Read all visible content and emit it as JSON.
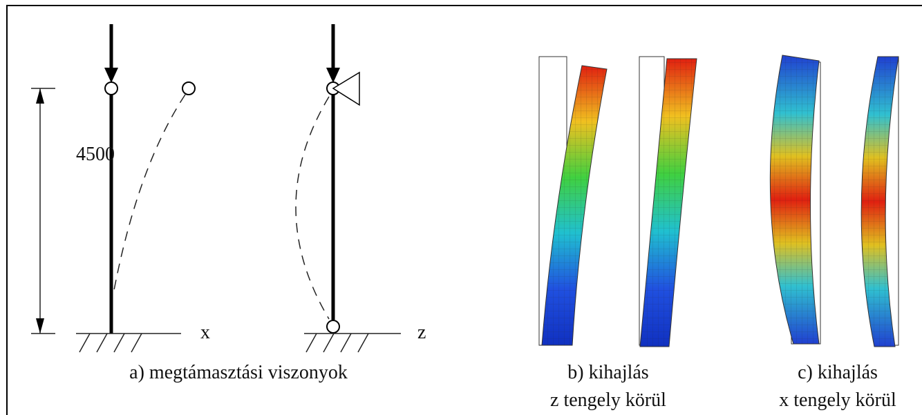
{
  "panel_a": {
    "dimension_label": "4500",
    "axis_left": "x",
    "axis_right": "z",
    "caption": "a) megtámasztási viszonyok"
  },
  "panel_b": {
    "caption_line1": "b) kihajlás",
    "caption_line2": "z tengely körül"
  },
  "panel_c": {
    "caption_line1": "c) kihajlás",
    "caption_line2": "x tengely körül"
  }
}
